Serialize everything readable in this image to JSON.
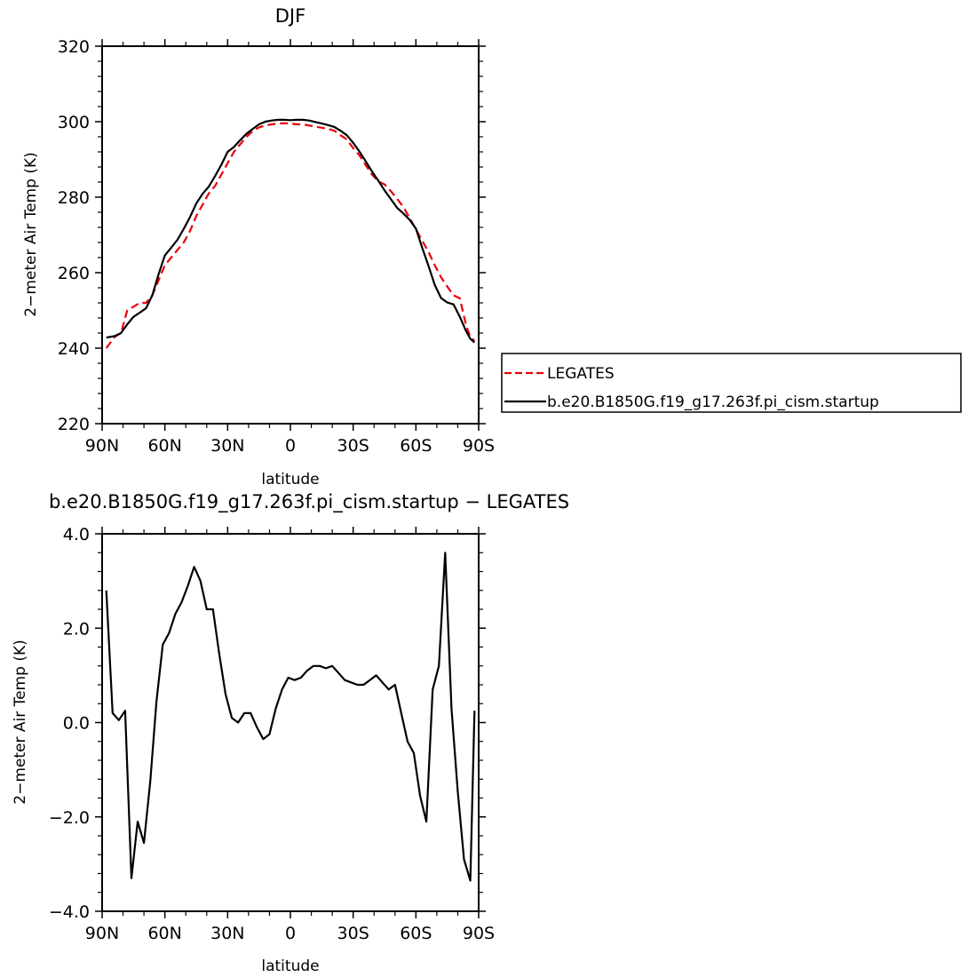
{
  "colors": {
    "legates": "#e8000b",
    "model": "#000000"
  },
  "chart_data": [
    {
      "type": "line",
      "title": "DJF",
      "xlabel": "latitude",
      "ylabel": "2−meter Air Temp (K)",
      "xlim": [
        90,
        -90
      ],
      "ylim": [
        220,
        320
      ],
      "xticks": [
        90,
        60,
        30,
        0,
        -30,
        -60,
        -90
      ],
      "xtick_labels": [
        "90N",
        "60N",
        "30N",
        "0",
        "30S",
        "60S",
        "90S"
      ],
      "yticks": [
        220,
        240,
        260,
        280,
        300,
        320
      ],
      "ytick_labels": [
        "220",
        "240",
        "260",
        "280",
        "300",
        "320"
      ],
      "grid": false,
      "legend_position": "right, outside plot",
      "legend": [
        "LEGATES",
        "b.e20.B1850G.f19_g17.263f.pi_cism.startup"
      ],
      "series": [
        {
          "name": "LEGATES",
          "style": "dashed",
          "color": "#e8000b",
          "x": [
            88,
            84,
            81,
            78,
            75,
            72,
            69,
            66,
            63,
            60,
            57,
            54,
            51,
            48,
            45,
            42,
            39,
            36,
            33,
            30,
            27,
            24,
            21,
            18,
            15,
            12,
            9,
            6,
            3,
            0,
            -3,
            -6,
            -9,
            -12,
            -15,
            -18,
            -21,
            -24,
            -27,
            -30,
            -33,
            -36,
            -39,
            -42,
            -45,
            -48,
            -51,
            -54,
            -57,
            -60,
            -63,
            -66,
            -69,
            -72,
            -75,
            -78,
            -81,
            -84,
            -86,
            -88
          ],
          "y": [
            240,
            243,
            244,
            250,
            251,
            252,
            252,
            254,
            258,
            262,
            264,
            266,
            268,
            271,
            275,
            278,
            281,
            283,
            286,
            289,
            292,
            294,
            296,
            297.5,
            298.5,
            299,
            299.3,
            299.5,
            299.6,
            299.5,
            299.3,
            299.3,
            299,
            298.7,
            298.4,
            298.1,
            297.6,
            296.4,
            295.3,
            293,
            291.1,
            288.5,
            286,
            284.2,
            283.4,
            281.6,
            279.6,
            277.4,
            274.5,
            271.5,
            268.5,
            265.5,
            262,
            258.8,
            256.3,
            254,
            253.2,
            246,
            243,
            242
          ]
        },
        {
          "name": "b.e20.B1850G.f19_g17.263f.pi_cism.startup",
          "style": "solid",
          "color": "#000000",
          "x": [
            88,
            84,
            81,
            78,
            75,
            72,
            69,
            66,
            63,
            60,
            57,
            54,
            51,
            48,
            45,
            42,
            39,
            36,
            33,
            30,
            27,
            24,
            21,
            18,
            15,
            12,
            9,
            6,
            3,
            0,
            -3,
            -6,
            -9,
            -12,
            -15,
            -18,
            -21,
            -24,
            -27,
            -30,
            -33,
            -36,
            -39,
            -42,
            -45,
            -48,
            -51,
            -54,
            -57,
            -60,
            -63,
            -66,
            -69,
            -72,
            -75,
            -78,
            -81,
            -84,
            -86,
            -88
          ],
          "y": [
            242.8,
            243.2,
            244,
            246.3,
            248.3,
            249.4,
            250.6,
            254,
            259.6,
            264.6,
            266.6,
            268.7,
            271.6,
            274.7,
            278.3,
            280.9,
            282.8,
            285.6,
            288.6,
            292,
            293.3,
            295.1,
            296.8,
            298.1,
            299.3,
            300,
            300.3,
            300.5,
            300.5,
            300.4,
            300.5,
            300.5,
            300.3,
            299.9,
            299.5,
            299.1,
            298.6,
            297.6,
            296.4,
            294.4,
            292.1,
            289.5,
            286.8,
            284.4,
            281.8,
            279.5,
            277.2,
            275.7,
            274,
            271.7,
            266.6,
            261.8,
            256.8,
            253.3,
            252.1,
            251.6,
            248.3,
            244.5,
            242.5,
            241.5
          ]
        }
      ]
    },
    {
      "type": "line",
      "title": "b.e20.B1850G.f19_g17.263f.pi_cism.startup − LEGATES",
      "xlabel": "latitude",
      "ylabel": "2−meter Air Temp (K)",
      "xlim": [
        90,
        -90
      ],
      "ylim": [
        -4.0,
        4.0
      ],
      "xticks": [
        90,
        60,
        30,
        0,
        -30,
        -60,
        -90
      ],
      "xtick_labels": [
        "90N",
        "60N",
        "30N",
        "0",
        "30S",
        "60S",
        "90S"
      ],
      "yticks": [
        -4.0,
        -2.0,
        0.0,
        2.0,
        4.0
      ],
      "ytick_labels": [
        "−4.0",
        "−2.0",
        "0.0",
        "2.0",
        "4.0"
      ],
      "grid": false,
      "series": [
        {
          "style": "solid",
          "color": "#000000",
          "x": [
            88,
            85,
            82,
            79,
            76,
            73,
            70,
            67,
            64,
            61,
            58,
            55,
            52,
            49,
            46,
            43,
            40,
            37,
            34,
            31,
            28,
            25,
            22,
            19,
            16,
            13,
            10,
            7,
            4,
            1,
            -2,
            -5,
            -8,
            -11,
            -14,
            -17,
            -20,
            -23,
            -26,
            -29,
            -32,
            -35,
            -38,
            -41,
            -44,
            -47,
            -50,
            -53,
            -56,
            -59,
            -62,
            -65,
            -68,
            -71,
            -74,
            -77,
            -80,
            -83,
            -86,
            -88
          ],
          "y": [
            2.8,
            0.2,
            0.05,
            0.25,
            -3.3,
            -2.1,
            -2.55,
            -1.25,
            0.45,
            1.65,
            1.9,
            2.3,
            2.55,
            2.9,
            3.3,
            3.0,
            2.4,
            2.4,
            1.45,
            0.6,
            0.1,
            0.0,
            0.2,
            0.2,
            -0.1,
            -0.35,
            -0.25,
            0.3,
            0.7,
            0.95,
            0.9,
            0.95,
            1.1,
            1.2,
            1.2,
            1.15,
            1.2,
            1.05,
            0.9,
            0.85,
            0.8,
            0.8,
            0.9,
            1.0,
            0.85,
            0.7,
            0.8,
            0.2,
            -0.4,
            -0.65,
            -1.55,
            -2.1,
            0.7,
            1.2,
            3.6,
            0.3,
            -1.45,
            -2.9,
            -3.35,
            0.25
          ]
        }
      ]
    }
  ]
}
